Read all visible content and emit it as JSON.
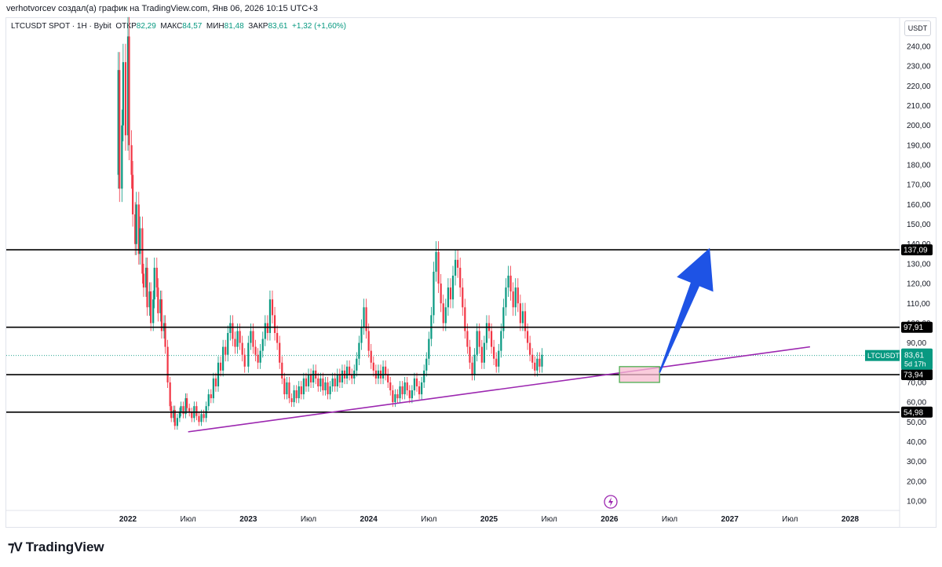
{
  "caption": "verhotvorcev создал(а) график на TradingView.com, Янв 06, 2026 10:15 UTC+3",
  "legend": {
    "symbol": "LTCUSDT SPOT · 1H · Bybit",
    "open_label": "ОТКР",
    "open": "82,29",
    "high_label": "МАКС",
    "high": "84,57",
    "low_label": "МИН",
    "low": "81,48",
    "close_label": "ЗАКР",
    "close": "83,61",
    "change": "+1,32 (+1,60%)"
  },
  "currency": "USDT",
  "brand": "TradingView",
  "colors": {
    "up": "#089981",
    "down": "#f23645",
    "trendline": "#9c27b0",
    "arrow": "#1e53e5",
    "box_fill": "#f8bbd0",
    "box_border": "#4caf50"
  },
  "chart_data": {
    "type": "candlestick",
    "y_axis_ticks": [
      10,
      20,
      30,
      40,
      50,
      60,
      70,
      80,
      90,
      100,
      110,
      120,
      130,
      140,
      150,
      160,
      170,
      180,
      190,
      200,
      210,
      220,
      230,
      240
    ],
    "y_tick_labels": [
      "10,00",
      "20,00",
      "30,00",
      "40,00",
      "50,00",
      "60,00",
      "70,00",
      "80,00",
      "90,00",
      "100,00",
      "110,00",
      "120,00",
      "130,00",
      "140,00",
      "150,00",
      "160,00",
      "170,00",
      "180,00",
      "190,00",
      "200,00",
      "210,00",
      "220,00",
      "230,00",
      "240,00"
    ],
    "x_axis_labels": [
      {
        "label": "2022",
        "date": "2022-01",
        "year": true
      },
      {
        "label": "Июл",
        "date": "2022-07",
        "year": false
      },
      {
        "label": "2023",
        "date": "2023-01",
        "year": true
      },
      {
        "label": "Июл",
        "date": "2023-07",
        "year": false
      },
      {
        "label": "2024",
        "date": "2024-01",
        "year": true
      },
      {
        "label": "Июл",
        "date": "2024-07",
        "year": false
      },
      {
        "label": "2025",
        "date": "2025-01",
        "year": true
      },
      {
        "label": "Июл",
        "date": "2025-07",
        "year": false
      },
      {
        "label": "2026",
        "date": "2026-01",
        "year": true
      },
      {
        "label": "Июл",
        "date": "2026-07",
        "year": false
      },
      {
        "label": "2027",
        "date": "2027-01",
        "year": true
      },
      {
        "label": "Июл",
        "date": "2027-07",
        "year": false
      },
      {
        "label": "2028",
        "date": "2028-01",
        "year": true
      }
    ],
    "horizontal_levels": [
      {
        "value": 137.09,
        "label": "137,09"
      },
      {
        "value": 97.91,
        "label": "97,91"
      },
      {
        "value": 73.94,
        "label": "73,94"
      },
      {
        "value": 54.98,
        "label": "54,98"
      }
    ],
    "last_price": {
      "value": 83.61,
      "label": "83,61",
      "symbol": "LTCUSDT",
      "countdown": "5d 17h"
    },
    "trendline": {
      "start": {
        "date": "2022-07",
        "value": 45
      },
      "end": {
        "date": "2027-09",
        "value": 88
      }
    },
    "target_box": {
      "start": "2026-02",
      "end": "2026-06",
      "low": 70,
      "high": 78
    },
    "arrow": {
      "from": {
        "date": "2026-06",
        "value": 75
      },
      "to": {
        "date": "2026-11",
        "value": 138
      }
    },
    "series": [
      [
        2021.92,
        175,
        228
      ],
      [
        2021.93,
        228,
        168
      ],
      [
        2021.95,
        168,
        200
      ],
      [
        2021.96,
        200,
        232
      ],
      [
        2021.98,
        232,
        195
      ],
      [
        2022.0,
        195,
        245
      ],
      [
        2022.01,
        245,
        190
      ],
      [
        2022.03,
        190,
        175
      ],
      [
        2022.04,
        175,
        155
      ],
      [
        2022.06,
        155,
        140
      ],
      [
        2022.07,
        140,
        160
      ],
      [
        2022.09,
        160,
        135
      ],
      [
        2022.1,
        135,
        148
      ],
      [
        2022.12,
        148,
        125
      ],
      [
        2022.13,
        125,
        118
      ],
      [
        2022.15,
        118,
        128
      ],
      [
        2022.16,
        128,
        108
      ],
      [
        2022.18,
        108,
        116
      ],
      [
        2022.19,
        116,
        100
      ],
      [
        2022.21,
        100,
        112
      ],
      [
        2022.22,
        112,
        128
      ],
      [
        2022.24,
        128,
        118
      ],
      [
        2022.25,
        118,
        105
      ],
      [
        2022.27,
        105,
        112
      ],
      [
        2022.28,
        112,
        96
      ],
      [
        2022.3,
        96,
        100
      ],
      [
        2022.31,
        100,
        88
      ],
      [
        2022.33,
        88,
        70
      ],
      [
        2022.35,
        70,
        58
      ],
      [
        2022.36,
        58,
        52
      ],
      [
        2022.38,
        52,
        56
      ],
      [
        2022.39,
        56,
        48
      ],
      [
        2022.41,
        48,
        52
      ],
      [
        2022.43,
        52,
        55
      ],
      [
        2022.44,
        55,
        58
      ],
      [
        2022.46,
        58,
        54
      ],
      [
        2022.48,
        54,
        62
      ],
      [
        2022.49,
        62,
        57
      ],
      [
        2022.51,
        57,
        55
      ],
      [
        2022.53,
        55,
        52
      ],
      [
        2022.55,
        52,
        58
      ],
      [
        2022.57,
        58,
        53
      ],
      [
        2022.59,
        53,
        50
      ],
      [
        2022.61,
        50,
        54
      ],
      [
        2022.63,
        54,
        52
      ],
      [
        2022.65,
        52,
        58
      ],
      [
        2022.67,
        58,
        64
      ],
      [
        2022.69,
        64,
        62
      ],
      [
        2022.71,
        62,
        72
      ],
      [
        2022.73,
        72,
        68
      ],
      [
        2022.75,
        68,
        80
      ],
      [
        2022.77,
        80,
        76
      ],
      [
        2022.79,
        76,
        88
      ],
      [
        2022.81,
        88,
        84
      ],
      [
        2022.83,
        84,
        95
      ],
      [
        2022.85,
        95,
        100
      ],
      [
        2022.87,
        100,
        92
      ],
      [
        2022.89,
        92,
        88
      ],
      [
        2022.91,
        88,
        96
      ],
      [
        2022.93,
        96,
        90
      ],
      [
        2022.95,
        90,
        84
      ],
      [
        2022.97,
        84,
        78
      ],
      [
        2023.0,
        78,
        90
      ],
      [
        2023.02,
        90,
        96
      ],
      [
        2023.04,
        96,
        88
      ],
      [
        2023.06,
        88,
        84
      ],
      [
        2023.08,
        84,
        80
      ],
      [
        2023.1,
        80,
        86
      ],
      [
        2023.12,
        86,
        92
      ],
      [
        2023.14,
        92,
        100
      ],
      [
        2023.16,
        100,
        95
      ],
      [
        2023.18,
        95,
        112
      ],
      [
        2023.2,
        112,
        104
      ],
      [
        2023.22,
        104,
        95
      ],
      [
        2023.24,
        95,
        90
      ],
      [
        2023.26,
        90,
        80
      ],
      [
        2023.28,
        80,
        72
      ],
      [
        2023.3,
        72,
        64
      ],
      [
        2023.32,
        64,
        70
      ],
      [
        2023.34,
        70,
        62
      ],
      [
        2023.36,
        62,
        60
      ],
      [
        2023.38,
        60,
        66
      ],
      [
        2023.4,
        66,
        62
      ],
      [
        2023.42,
        62,
        68
      ],
      [
        2023.44,
        68,
        64
      ],
      [
        2023.46,
        64,
        72
      ],
      [
        2023.48,
        72,
        68
      ],
      [
        2023.5,
        68,
        74
      ],
      [
        2023.52,
        74,
        70
      ],
      [
        2023.54,
        70,
        76
      ],
      [
        2023.56,
        76,
        72
      ],
      [
        2023.58,
        72,
        68
      ],
      [
        2023.6,
        68,
        72
      ],
      [
        2023.62,
        72,
        66
      ],
      [
        2023.64,
        66,
        70
      ],
      [
        2023.66,
        70,
        64
      ],
      [
        2023.68,
        64,
        68
      ],
      [
        2023.7,
        68,
        72
      ],
      [
        2023.72,
        72,
        68
      ],
      [
        2023.74,
        68,
        74
      ],
      [
        2023.76,
        74,
        70
      ],
      [
        2023.78,
        70,
        76
      ],
      [
        2023.8,
        76,
        72
      ],
      [
        2023.82,
        72,
        78
      ],
      [
        2023.84,
        78,
        74
      ],
      [
        2023.86,
        74,
        72
      ],
      [
        2023.88,
        72,
        76
      ],
      [
        2023.9,
        76,
        82
      ],
      [
        2023.92,
        82,
        90
      ],
      [
        2023.94,
        90,
        98
      ],
      [
        2023.96,
        98,
        108
      ],
      [
        2023.98,
        108,
        96
      ],
      [
        2024.0,
        96,
        86
      ],
      [
        2024.02,
        86,
        80
      ],
      [
        2024.04,
        80,
        76
      ],
      [
        2024.06,
        76,
        72
      ],
      [
        2024.08,
        72,
        76
      ],
      [
        2024.1,
        76,
        72
      ],
      [
        2024.12,
        72,
        78
      ],
      [
        2024.14,
        78,
        74
      ],
      [
        2024.16,
        74,
        70
      ],
      [
        2024.18,
        70,
        66
      ],
      [
        2024.2,
        66,
        60
      ],
      [
        2024.22,
        60,
        64
      ],
      [
        2024.24,
        64,
        62
      ],
      [
        2024.26,
        62,
        68
      ],
      [
        2024.28,
        68,
        64
      ],
      [
        2024.3,
        64,
        70
      ],
      [
        2024.32,
        70,
        66
      ],
      [
        2024.34,
        66,
        62
      ],
      [
        2024.36,
        62,
        66
      ],
      [
        2024.38,
        66,
        72
      ],
      [
        2024.4,
        72,
        68
      ],
      [
        2024.42,
        68,
        64
      ],
      [
        2024.44,
        64,
        70
      ],
      [
        2024.46,
        70,
        76
      ],
      [
        2024.48,
        76,
        82
      ],
      [
        2024.5,
        82,
        92
      ],
      [
        2024.52,
        92,
        104
      ],
      [
        2024.54,
        104,
        126
      ],
      [
        2024.56,
        126,
        136
      ],
      [
        2024.58,
        136,
        120
      ],
      [
        2024.6,
        120,
        110
      ],
      [
        2024.62,
        110,
        100
      ],
      [
        2024.64,
        100,
        108
      ],
      [
        2024.66,
        108,
        118
      ],
      [
        2024.68,
        118,
        112
      ],
      [
        2024.7,
        112,
        124
      ],
      [
        2024.72,
        124,
        132
      ],
      [
        2024.74,
        132,
        128
      ],
      [
        2024.76,
        128,
        118
      ],
      [
        2024.78,
        118,
        108
      ],
      [
        2024.8,
        108,
        96
      ],
      [
        2024.82,
        96,
        88
      ],
      [
        2024.84,
        88,
        80
      ],
      [
        2024.86,
        80,
        74
      ],
      [
        2024.88,
        74,
        84
      ],
      [
        2024.9,
        84,
        96
      ],
      [
        2024.92,
        96,
        88
      ],
      [
        2024.94,
        88,
        80
      ],
      [
        2024.96,
        80,
        90
      ],
      [
        2024.98,
        90,
        100
      ],
      [
        2025.0,
        100,
        96
      ],
      [
        2025.02,
        96,
        88
      ],
      [
        2025.04,
        88,
        82
      ],
      [
        2025.06,
        82,
        78
      ],
      [
        2025.08,
        78,
        86
      ],
      [
        2025.1,
        86,
        96
      ],
      [
        2025.12,
        96,
        108
      ],
      [
        2025.14,
        108,
        118
      ],
      [
        2025.16,
        118,
        124
      ],
      [
        2025.18,
        124,
        116
      ],
      [
        2025.2,
        116,
        108
      ],
      [
        2025.22,
        108,
        118
      ],
      [
        2025.24,
        118,
        110
      ],
      [
        2025.26,
        110,
        100
      ],
      [
        2025.28,
        100,
        106
      ],
      [
        2025.3,
        106,
        96
      ],
      [
        2025.32,
        96,
        90
      ],
      [
        2025.34,
        90,
        84
      ],
      [
        2025.36,
        84,
        80
      ],
      [
        2025.38,
        80,
        76
      ],
      [
        2025.4,
        76,
        82
      ],
      [
        2025.42,
        82,
        78
      ],
      [
        2025.44,
        78,
        84
      ]
    ]
  }
}
